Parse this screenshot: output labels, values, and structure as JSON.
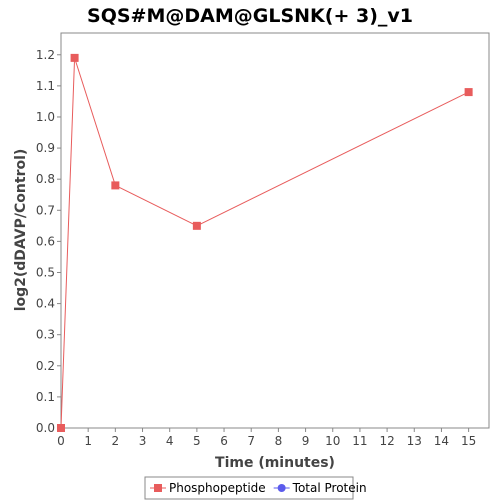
{
  "chart_data": {
    "type": "line",
    "title": "SQS#M@DAM@GLSNK(+ 3)_v1",
    "xlabel": "Time (minutes)",
    "ylabel": "log2(dDAVP/Control)",
    "xlim": [
      0,
      15.75
    ],
    "ylim": [
      0,
      1.27
    ],
    "xticks": [
      "0",
      "1",
      "2",
      "3",
      "4",
      "5",
      "6",
      "7",
      "8",
      "9",
      "10",
      "11",
      "12",
      "13",
      "14",
      "15"
    ],
    "yticks": [
      "0.0",
      "0.1",
      "0.2",
      "0.3",
      "0.4",
      "0.5",
      "0.6",
      "0.7",
      "0.8",
      "0.9",
      "1.0",
      "1.1",
      "1.2"
    ],
    "grid": false,
    "legend_position": "bottom",
    "series": [
      {
        "name": "Phosphopeptide",
        "color": "#e85c5c",
        "marker": "square",
        "x": [
          0,
          0.5,
          2,
          5,
          15
        ],
        "y": [
          0.0,
          1.19,
          0.78,
          0.65,
          1.08
        ]
      },
      {
        "name": "Total Protein",
        "color": "#5b5bec",
        "marker": "circle",
        "x": [],
        "y": []
      }
    ]
  }
}
